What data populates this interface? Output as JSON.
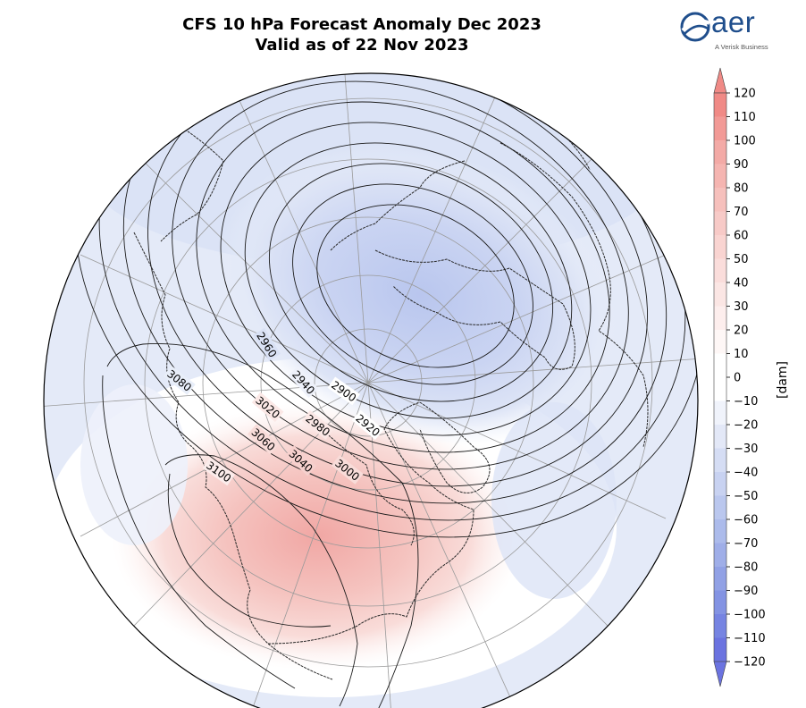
{
  "title": {
    "line1": "CFS 10 hPa Forecast Anomaly Dec 2023",
    "line2": "Valid as of 22 Nov 2023"
  },
  "logo": {
    "brand": "aer",
    "tagline": "A Verisk Business"
  },
  "colorbar": {
    "unit": "[dam]",
    "ticks": [
      120,
      110,
      100,
      90,
      80,
      70,
      60,
      50,
      40,
      30,
      20,
      10,
      0,
      -10,
      -20,
      -30,
      -40,
      -50,
      -60,
      -70,
      -80,
      -90,
      -100,
      -110,
      -120
    ],
    "colors": {
      "120": "#f08a86",
      "110": "#f29a96",
      "100": "#f3aaa6",
      "90": "#f5b5b1",
      "80": "#f6c0bc",
      "70": "#f7cac7",
      "60": "#f9d4d1",
      "50": "#fadddb",
      "40": "#fbe6e4",
      "30": "#fdeeed",
      "20": "#fef7f6",
      "10": "#ffffff",
      "-10": "#ffffff",
      "-20": "#f0f3fb",
      "-30": "#e3e8f7",
      "-40": "#d5ddf4",
      "-50": "#c8d2f1",
      "-60": "#bac7ee",
      "-70": "#acbbeb",
      "-80": "#9faee8",
      "-90": "#91a1e5",
      "-100": "#8393e3",
      "-110": "#7684e2",
      "-120": "#6b73e0"
    }
  },
  "contour_labels": [
    "3080",
    "3100",
    "3060",
    "3040",
    "3020",
    "2960",
    "2940",
    "2900",
    "2980",
    "2920",
    "3000"
  ],
  "colors": {
    "land_line": "#2a2a2a",
    "contour": "#1a1a1a",
    "grid": "#9a9a9a"
  }
}
